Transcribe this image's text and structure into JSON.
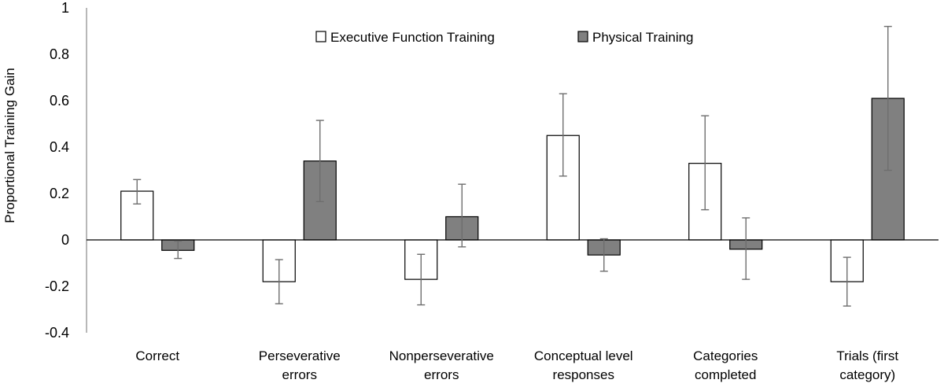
{
  "chart_data": {
    "type": "bar",
    "title": "",
    "xlabel": "",
    "ylabel": "Proportional Training Gain",
    "ylim": [
      -0.4,
      1
    ],
    "yticks": [
      "1",
      "0.8",
      "0.6",
      "0.4",
      "0.2",
      "0",
      "-0.2",
      "-0.4"
    ],
    "ytick_values": [
      1,
      0.8,
      0.6,
      0.4,
      0.2,
      0,
      -0.2,
      -0.4
    ],
    "categories": [
      [
        "Correct"
      ],
      [
        "Perseverative",
        "errors"
      ],
      [
        "Nonperseverative",
        "errors"
      ],
      [
        "Conceptual level",
        "responses"
      ],
      [
        "Categories",
        "completed"
      ],
      [
        "Trials (first",
        "category)"
      ]
    ],
    "legend_position": "top-center",
    "grid": false,
    "series": [
      {
        "name": "Executive Function Training",
        "color": "#ffffff",
        "values": [
          0.21,
          -0.18,
          -0.17,
          0.45,
          0.33,
          -0.18
        ],
        "err_low": [
          0.155,
          -0.275,
          -0.28,
          0.275,
          0.13,
          -0.285
        ],
        "err_high": [
          0.26,
          -0.085,
          -0.062,
          0.63,
          0.535,
          -0.075
        ]
      },
      {
        "name": "Physical Training",
        "color": "#808080",
        "values": [
          -0.045,
          0.34,
          0.1,
          -0.065,
          -0.04,
          0.61
        ],
        "err_low": [
          -0.08,
          0.165,
          -0.03,
          -0.135,
          -0.17,
          0.3
        ],
        "err_high": [
          -0.005,
          0.515,
          0.24,
          0.005,
          0.095,
          0.92
        ]
      }
    ]
  }
}
